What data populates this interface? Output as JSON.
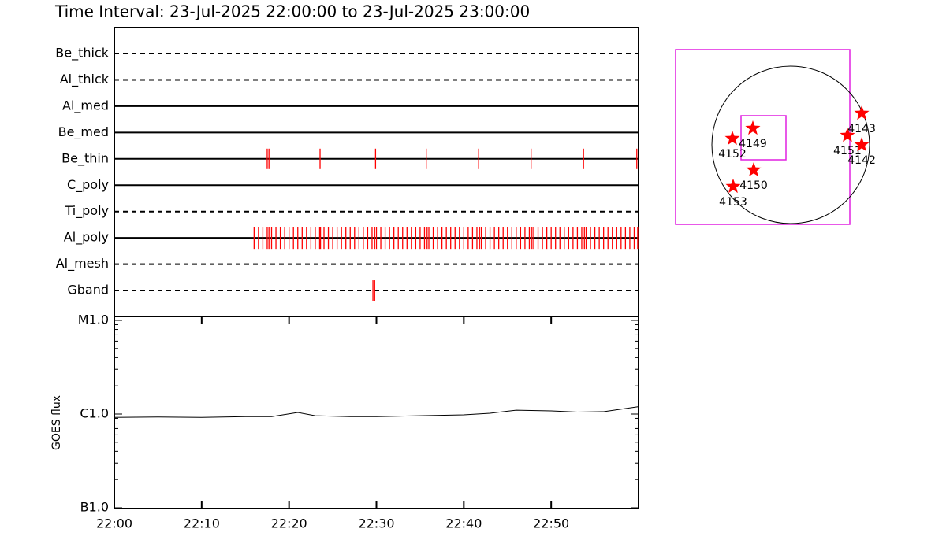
{
  "chart_data": [
    {
      "type": "event",
      "title": "Time Interval: 23-Jul-2025 22:00:00 to 23-Jul-2025 23:00:00",
      "color": "#ff0000",
      "xlim": [
        0,
        60
      ],
      "series": [
        {
          "name": "Be_thick",
          "line_style": "dashed",
          "x": []
        },
        {
          "name": "Al_thick",
          "line_style": "dashed",
          "x": []
        },
        {
          "name": "Al_med",
          "line_style": "solid",
          "x": []
        },
        {
          "name": "Be_med",
          "line_style": "solid",
          "x": []
        },
        {
          "name": "Be_thin",
          "line_style": "solid",
          "x": [
            17.5,
            17.7,
            23.55,
            29.9,
            35.7,
            41.7,
            47.7,
            53.7,
            59.8
          ]
        },
        {
          "name": "C_poly",
          "line_style": "solid",
          "x": []
        },
        {
          "name": "Ti_poly",
          "line_style": "dashed",
          "x": []
        },
        {
          "name": "Al_poly",
          "line_style": "solid",
          "x": [
            16,
            16.5,
            17,
            17.5,
            17.7,
            18,
            18.5,
            19,
            19.5,
            20,
            20.5,
            21,
            21.5,
            22,
            22.5,
            23,
            23.5,
            23.6,
            24,
            24.5,
            25,
            25.5,
            26,
            26.5,
            27,
            27.5,
            28,
            28.5,
            29,
            29.5,
            29.8,
            30,
            30.5,
            31,
            31.5,
            32,
            32.5,
            33,
            33.5,
            34,
            34.5,
            35,
            35.5,
            35.8,
            36,
            36.5,
            37,
            37.5,
            38,
            38.5,
            39,
            39.5,
            40,
            40.5,
            41,
            41.5,
            41.8,
            42,
            42.5,
            43,
            43.5,
            44,
            44.5,
            45,
            45.5,
            46,
            46.5,
            47,
            47.5,
            47.8,
            48,
            48.5,
            49,
            49.5,
            50,
            50.5,
            51,
            51.5,
            52,
            52.5,
            53,
            53.5,
            53.8,
            54,
            54.5,
            55,
            55.5,
            56,
            56.5,
            57,
            57.5,
            58,
            58.5,
            59,
            59.5,
            59.9
          ]
        },
        {
          "name": "Al_mesh",
          "line_style": "dashed",
          "x": []
        },
        {
          "name": "Gband",
          "line_style": "dashed",
          "x": [
            29.6,
            29.8
          ]
        }
      ]
    },
    {
      "type": "line",
      "ylabel": "GOES flux",
      "color": "#000000",
      "log_scale": true,
      "xlim": [
        0,
        60
      ],
      "xticks": [
        {
          "value": 0,
          "label": "22:00"
        },
        {
          "value": 10,
          "label": "22:10"
        },
        {
          "value": 20,
          "label": "22:20"
        },
        {
          "value": 30,
          "label": "22:30"
        },
        {
          "value": 40,
          "label": "22:40"
        },
        {
          "value": 50,
          "label": "22:50"
        }
      ],
      "ylim": [
        1e-07,
        1e-05
      ],
      "yticks": [
        {
          "value": 1e-07,
          "label": "B1.0"
        },
        {
          "value": 1e-06,
          "label": "C1.0"
        },
        {
          "value": 1e-05,
          "label": "M1.0"
        }
      ],
      "yminorticks": [
        2e-07,
        3e-07,
        4e-07,
        5e-07,
        6e-07,
        7e-07,
        8e-07,
        9e-07,
        2e-06,
        3e-06,
        4e-06,
        5e-06,
        6e-06,
        7e-06,
        8e-06,
        9e-06
      ],
      "x": [
        0,
        5,
        10,
        15,
        18,
        21,
        23,
        27,
        30,
        35,
        40,
        43,
        46,
        50,
        53,
        56,
        60
      ],
      "values": [
        9.2e-07,
        9.3e-07,
        9.2e-07,
        9.4e-07,
        9.4e-07,
        1.04e-06,
        9.6e-07,
        9.4e-07,
        9.4e-07,
        9.6e-07,
        9.8e-07,
        1.02e-06,
        1.1e-06,
        1.08e-06,
        1.05e-06,
        1.06e-06,
        1.2e-06
      ]
    },
    {
      "type": "scatter",
      "color": "#ff0000",
      "xlim": [
        -1500,
        1500
      ],
      "ylim": [
        -1500,
        1500
      ],
      "labels": [
        "4152",
        "4149",
        "4150",
        "4153",
        "4143",
        "4151",
        "4142"
      ],
      "x": [
        -699,
        -454,
        -444,
        -690,
        851,
        680,
        851
      ],
      "y": [
        76,
        198,
        -302,
        -501,
        378,
        113,
        0
      ]
    }
  ]
}
